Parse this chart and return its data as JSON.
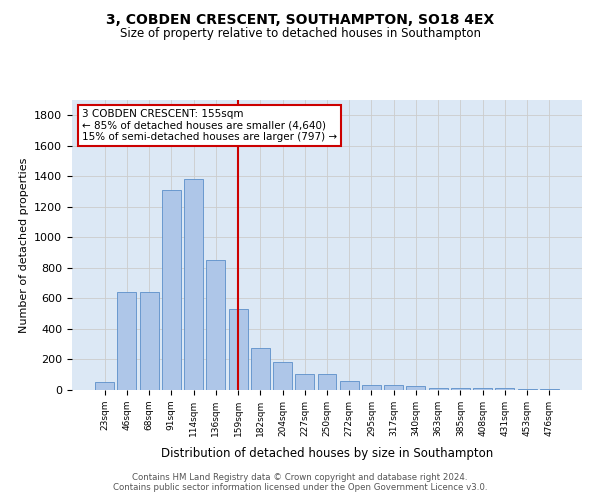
{
  "title": "3, COBDEN CRESCENT, SOUTHAMPTON, SO18 4EX",
  "subtitle": "Size of property relative to detached houses in Southampton",
  "xlabel": "Distribution of detached houses by size in Southampton",
  "ylabel": "Number of detached properties",
  "bar_color": "#aec6e8",
  "bar_edge_color": "#5b8fc9",
  "grid_color": "#cccccc",
  "background_color": "#dce8f5",
  "red_line_color": "#cc0000",
  "annotation_box_color": "#cc0000",
  "categories": [
    "23sqm",
    "46sqm",
    "68sqm",
    "91sqm",
    "114sqm",
    "136sqm",
    "159sqm",
    "182sqm",
    "204sqm",
    "227sqm",
    "250sqm",
    "272sqm",
    "295sqm",
    "317sqm",
    "340sqm",
    "363sqm",
    "385sqm",
    "408sqm",
    "431sqm",
    "453sqm",
    "476sqm"
  ],
  "values": [
    50,
    640,
    640,
    1310,
    1380,
    850,
    530,
    275,
    185,
    105,
    105,
    60,
    35,
    35,
    25,
    15,
    15,
    10,
    10,
    5,
    5
  ],
  "red_line_index": 6,
  "annotation_line1": "3 COBDEN CRESCENT: 155sqm",
  "annotation_line2": "← 85% of detached houses are smaller (4,640)",
  "annotation_line3": "15% of semi-detached houses are larger (797) →",
  "ylim": [
    0,
    1900
  ],
  "yticks": [
    0,
    200,
    400,
    600,
    800,
    1000,
    1200,
    1400,
    1600,
    1800
  ],
  "footer_line1": "Contains HM Land Registry data © Crown copyright and database right 2024.",
  "footer_line2": "Contains public sector information licensed under the Open Government Licence v3.0."
}
